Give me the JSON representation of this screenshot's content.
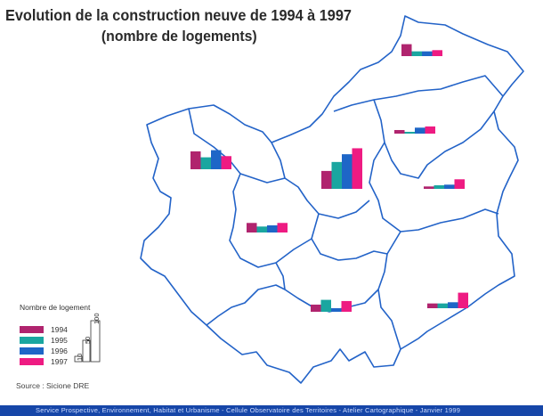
{
  "title": {
    "line1": "Evolution de la construction neuve de 1994 à 1997",
    "line2": "(nombre de logements)"
  },
  "colors": {
    "y1994": "#b0246e",
    "y1995": "#1aa6a0",
    "y1996": "#1e66c7",
    "y1997": "#ee1b82",
    "border": "#2363c8"
  },
  "legend": {
    "title": "Nombre de logement",
    "years": [
      "1994",
      "1995",
      "1996",
      "1997"
    ],
    "scale": [
      "10",
      "50",
      "100"
    ],
    "source": "Source : Sicione DRE"
  },
  "footer": "Service Prospective, Environnement, Habitat et Urbanisme - Cellule Observatoire des Territoires - Atelier Cartographique - Janvier 1999",
  "chart_data": {
    "type": "bar",
    "series_names": [
      "1994",
      "1995",
      "1996",
      "1997"
    ],
    "regions": [
      {
        "values": [
          20,
          8,
          8,
          10
        ]
      },
      {
        "values": [
          6,
          3,
          10,
          12
        ]
      },
      {
        "values": [
          4,
          6,
          7,
          16
        ]
      },
      {
        "values": [
          30,
          20,
          32,
          22
        ]
      },
      {
        "values": [
          30,
          45,
          58,
          68
        ]
      },
      {
        "values": [
          16,
          10,
          12,
          16
        ]
      },
      {
        "values": [
          12,
          20,
          6,
          18
        ]
      },
      {
        "values": [
          8,
          8,
          10,
          26
        ]
      }
    ]
  }
}
